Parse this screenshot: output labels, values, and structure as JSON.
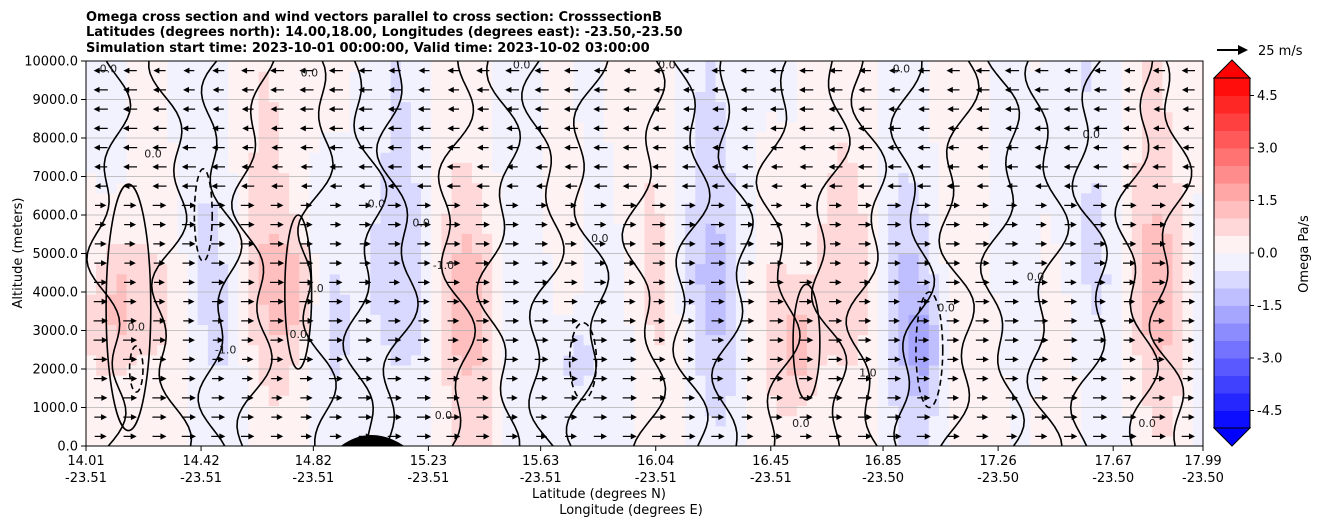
{
  "chart_data": {
    "type": "heatmap",
    "title_lines": [
      "Omega cross section and wind vectors parallel to cross section: CrosssectionB",
      "Latitudes (degrees north): 14.00,18.00, Longitudes (degrees east): -23.50,-23.50",
      "Simulation start time: 2023-10-01 00:00:00, Valid time: 2023-10-02 03:00:00"
    ],
    "ylabel": "Altitude (meters)",
    "xlabel_line1": "Latitude (degrees N)",
    "xlabel_line2": "Longitude (degrees E)",
    "ylim": [
      0,
      10000
    ],
    "yticks": [
      "0.0",
      "1000.0",
      "2000.0",
      "3000.0",
      "4000.0",
      "5000.0",
      "6000.0",
      "7000.0",
      "8000.0",
      "9000.0",
      "10000.0"
    ],
    "xlim": [
      14.01,
      17.99
    ],
    "xticks": [
      {
        "lat": "14.01",
        "lon": "-23.51",
        "value": 14.01
      },
      {
        "lat": "14.42",
        "lon": "-23.51",
        "value": 14.42
      },
      {
        "lat": "14.82",
        "lon": "-23.51",
        "value": 14.82
      },
      {
        "lat": "15.23",
        "lon": "-23.51",
        "value": 15.23
      },
      {
        "lat": "15.63",
        "lon": "-23.51",
        "value": 15.63
      },
      {
        "lat": "16.04",
        "lon": "-23.51",
        "value": 16.04
      },
      {
        "lat": "16.45",
        "lon": "-23.51",
        "value": 16.45
      },
      {
        "lat": "16.85",
        "lon": "-23.50",
        "value": 16.85
      },
      {
        "lat": "17.26",
        "lon": "-23.50",
        "value": 17.26
      },
      {
        "lat": "17.67",
        "lon": "-23.50",
        "value": 17.67
      },
      {
        "lat": "17.99",
        "lon": "-23.50",
        "value": 17.99
      }
    ],
    "colorbar": {
      "label": "Omega Pa/s",
      "range": [
        -5,
        5
      ],
      "ticks": [
        "-4.5",
        "-3.0",
        "-1.5",
        "0.0",
        "1.5",
        "3.0",
        "4.5"
      ],
      "tick_values": [
        -4.5,
        -3.0,
        -1.5,
        0.0,
        1.5,
        3.0,
        4.5
      ],
      "levels": 20,
      "extend": "both"
    },
    "quiver_key": {
      "label": "25 m/s"
    },
    "contour_labels": [
      "0.0",
      "1.0",
      "-1.0"
    ],
    "gridlines": "horizontal",
    "colors": {
      "negative": "#0000ff",
      "positive": "#ff0000",
      "neutral": "#ffffff",
      "contour": "#000000",
      "grid": "#b0b0b0"
    }
  }
}
